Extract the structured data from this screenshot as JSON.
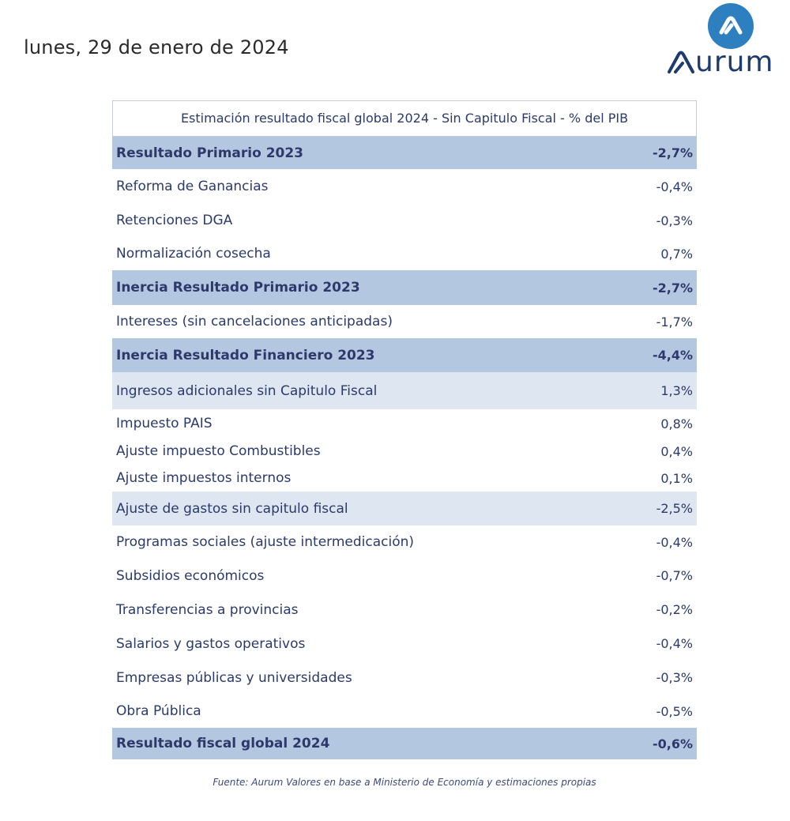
{
  "header": {
    "date": "lunes, 29 de enero de 2024",
    "logo_text": "urum",
    "brand_color": "#2e7fc0"
  },
  "table": {
    "title": "Estimación resultado fiscal global 2024 - Sin Capitulo Fiscal - % del PIB",
    "rows": [
      {
        "label": "Resultado Primario 2023",
        "value": "-2,7%"
      },
      {
        "label": "Reforma de Ganancias",
        "value": "-0,4%"
      },
      {
        "label": "Retenciones DGA",
        "value": "-0,3%"
      },
      {
        "label": "Normalización cosecha",
        "value": "0,7%"
      },
      {
        "label": "Inercia Resultado Primario 2023",
        "value": "-2,7%"
      },
      {
        "label": "Intereses (sin cancelaciones anticipadas)",
        "value": "-1,7%"
      },
      {
        "label": "Inercia Resultado Financiero 2023",
        "value": "-4,4%"
      },
      {
        "label": "Ingresos adicionales sin Capitulo Fiscal",
        "value": "1,3%"
      },
      {
        "label": "Impuesto PAIS",
        "value": "0,8%"
      },
      {
        "label": "Ajuste impuesto Combustibles",
        "value": "0,4%"
      },
      {
        "label": "Ajuste impuestos internos",
        "value": "0,1%"
      },
      {
        "label": "Ajuste de gastos sin capitulo fiscal",
        "value": "-2,5%"
      },
      {
        "label": "Programas sociales (ajuste intermedicación)",
        "value": "-0,4%"
      },
      {
        "label": "Subsidios económicos",
        "value": "-0,7%"
      },
      {
        "label": "Transferencias a provincias",
        "value": "-0,2%"
      },
      {
        "label": "Salarios y gastos operativos",
        "value": "-0,4%"
      },
      {
        "label": "Empresas públicas y universidades",
        "value": "-0,3%"
      },
      {
        "label": "Obra Pública",
        "value": "-0,5%"
      },
      {
        "label": "Resultado fiscal global 2024",
        "value": "-0,6%"
      }
    ]
  },
  "footnote": "Fuente: Aurum Valores en base a Ministerio de Economía y estimaciones propias"
}
